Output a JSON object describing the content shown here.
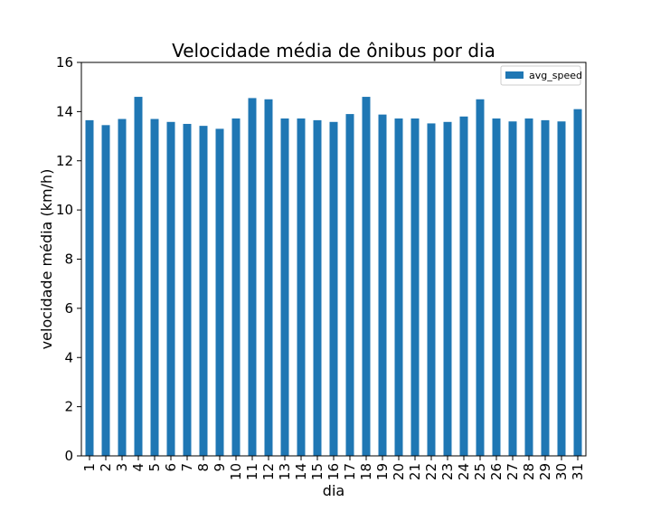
{
  "chart_data": {
    "type": "bar",
    "title": "Velocidade média de ônibus por dia",
    "xlabel": "dia",
    "ylabel": "velocidade média (km/h)",
    "ylim": [
      0,
      16
    ],
    "yticks": [
      0,
      2,
      4,
      6,
      8,
      10,
      12,
      14,
      16
    ],
    "grid": false,
    "legend_position": "top-right",
    "categories": [
      "1",
      "2",
      "3",
      "4",
      "5",
      "6",
      "7",
      "8",
      "9",
      "10",
      "11",
      "12",
      "13",
      "14",
      "15",
      "16",
      "17",
      "18",
      "19",
      "20",
      "21",
      "22",
      "23",
      "24",
      "25",
      "26",
      "27",
      "28",
      "29",
      "30",
      "31"
    ],
    "series": [
      {
        "name": "avg_speed",
        "color": "#1f77b4",
        "values": [
          13.65,
          13.45,
          13.7,
          14.6,
          13.7,
          13.58,
          13.5,
          13.42,
          13.3,
          13.72,
          14.55,
          14.5,
          13.72,
          13.72,
          13.65,
          13.58,
          13.9,
          14.6,
          13.88,
          13.72,
          13.72,
          13.52,
          13.58,
          13.8,
          14.5,
          13.72,
          13.6,
          13.72,
          13.65,
          13.6,
          14.1
        ]
      }
    ]
  }
}
